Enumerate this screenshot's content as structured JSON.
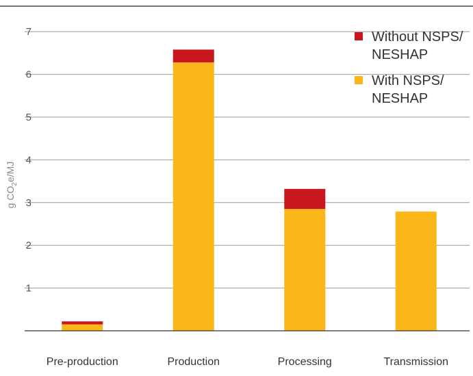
{
  "chart_data": {
    "type": "bar",
    "stacked": true,
    "categories": [
      "Pre-production",
      "Production",
      "Processing",
      "Transmission"
    ],
    "series": [
      {
        "name": "With NSPS/ NESHAP",
        "legend_lines": [
          "With NSPS/",
          "NESHAP"
        ],
        "values": [
          0.15,
          6.28,
          2.85,
          2.79
        ],
        "color": "#fbb619"
      },
      {
        "name": "Without NSPS/ NESHAP",
        "legend_lines": [
          "Without NSPS/",
          "NESHAP"
        ],
        "values": [
          0.07,
          0.3,
          0.47,
          0.0
        ],
        "color": "#c8161d"
      }
    ],
    "ylabel": "g CO2e/MJ",
    "ylabel_parts": [
      "g CO",
      "2",
      "e/MJ"
    ],
    "yticks": [
      1,
      2,
      3,
      4,
      5,
      6,
      7
    ],
    "ylim": [
      0,
      7.6
    ],
    "grid": true,
    "legend_position": "top-right"
  }
}
